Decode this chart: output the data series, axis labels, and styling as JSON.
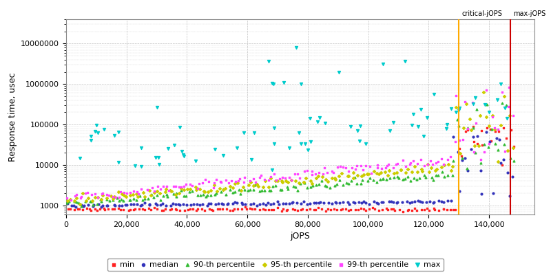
{
  "xlabel": "jOPS",
  "ylabel": "Response time, usec",
  "critical_jops": 130000,
  "max_jops": 147000,
  "ylim_min": 600,
  "ylim_max": 40000000,
  "xlim_min": 0,
  "xlim_max": 155000,
  "xticks": [
    0,
    20000,
    40000,
    60000,
    80000,
    100000,
    120000,
    140000
  ],
  "xtick_labels": [
    "0",
    "20,000",
    "40,000",
    "60,000",
    "80,000",
    "100,000",
    "120,000",
    "140,000"
  ],
  "colors": {
    "min": "#ff2222",
    "median": "#3333bb",
    "p90": "#33bb33",
    "p95": "#cccc00",
    "p99": "#ff44ff",
    "max": "#00cccc"
  },
  "legend_labels": [
    "min",
    "median",
    "90-th percentile",
    "95-th percentile",
    "99-th percentile",
    "max"
  ],
  "critical_line_color": "#ffaa00",
  "max_line_color": "#cc0000",
  "background_color": "#ffffff",
  "grid_color": "#bbbbbb"
}
